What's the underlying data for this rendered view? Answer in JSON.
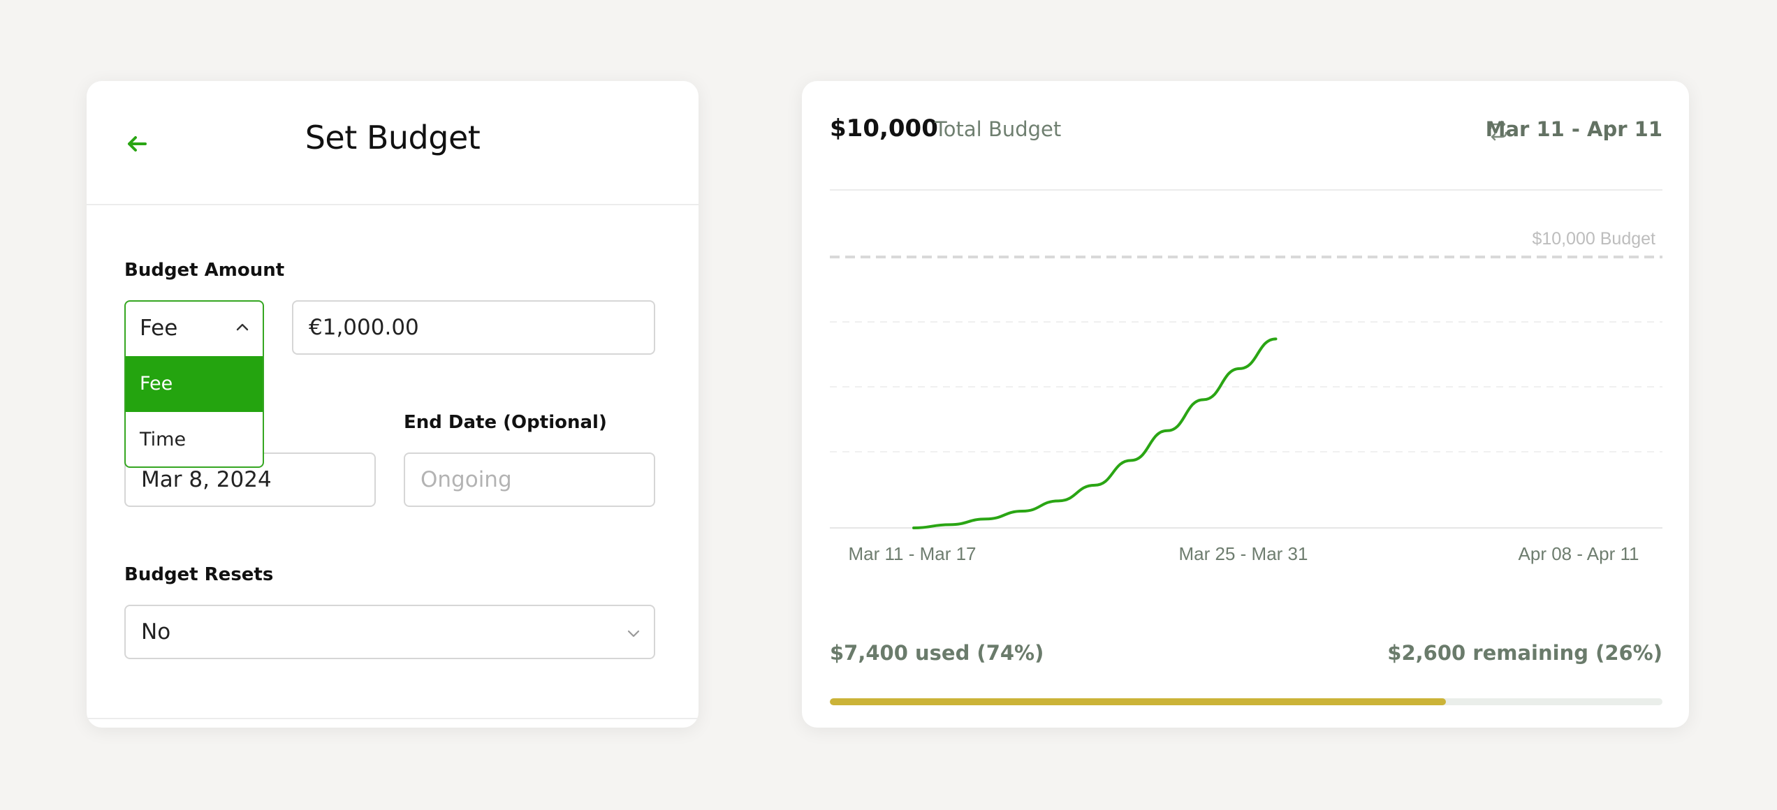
{
  "set_budget": {
    "title": "Set Budget",
    "budget_amount_label": "Budget Amount",
    "type_dropdown": {
      "selected": "Fee",
      "options": [
        "Fee",
        "Time"
      ]
    },
    "amount_value": "€1,000.00",
    "end_date_label": "End Date (Optional)",
    "start_date_value": "Mar 8, 2024",
    "end_date_placeholder": "Ongoing",
    "resets_label": "Budget Resets",
    "resets_value": "No"
  },
  "summary": {
    "total_amount": "$10,000",
    "total_label": "Total Budget",
    "date_range": "Mar 11 - Apr 11",
    "used_text": "$7,400 used (74%)",
    "remaining_text": "$2,600 remaining (26%)",
    "used_fraction": 0.74,
    "bar_color": "#cbb338"
  },
  "chart_data": {
    "type": "line",
    "budget_line_label": "$10,000 Budget",
    "budget_value": 10000,
    "ylim": [
      0,
      12000
    ],
    "x_tick_labels": [
      "Mar 11 - Mar 17",
      "Mar 25 - Mar 31",
      "Apr 08 - Apr 11"
    ],
    "x": [
      0,
      0.5,
      1,
      1.5,
      2,
      2.5,
      3,
      3.5,
      4,
      4.5,
      5
    ],
    "series": [
      {
        "values": [
          0,
          120,
          330,
          620,
          1000,
          1580,
          2500,
          3600,
          4750,
          5900,
          7000
        ],
        "color": "#2aa514"
      }
    ],
    "x_axis_end": 10,
    "grid": true
  }
}
